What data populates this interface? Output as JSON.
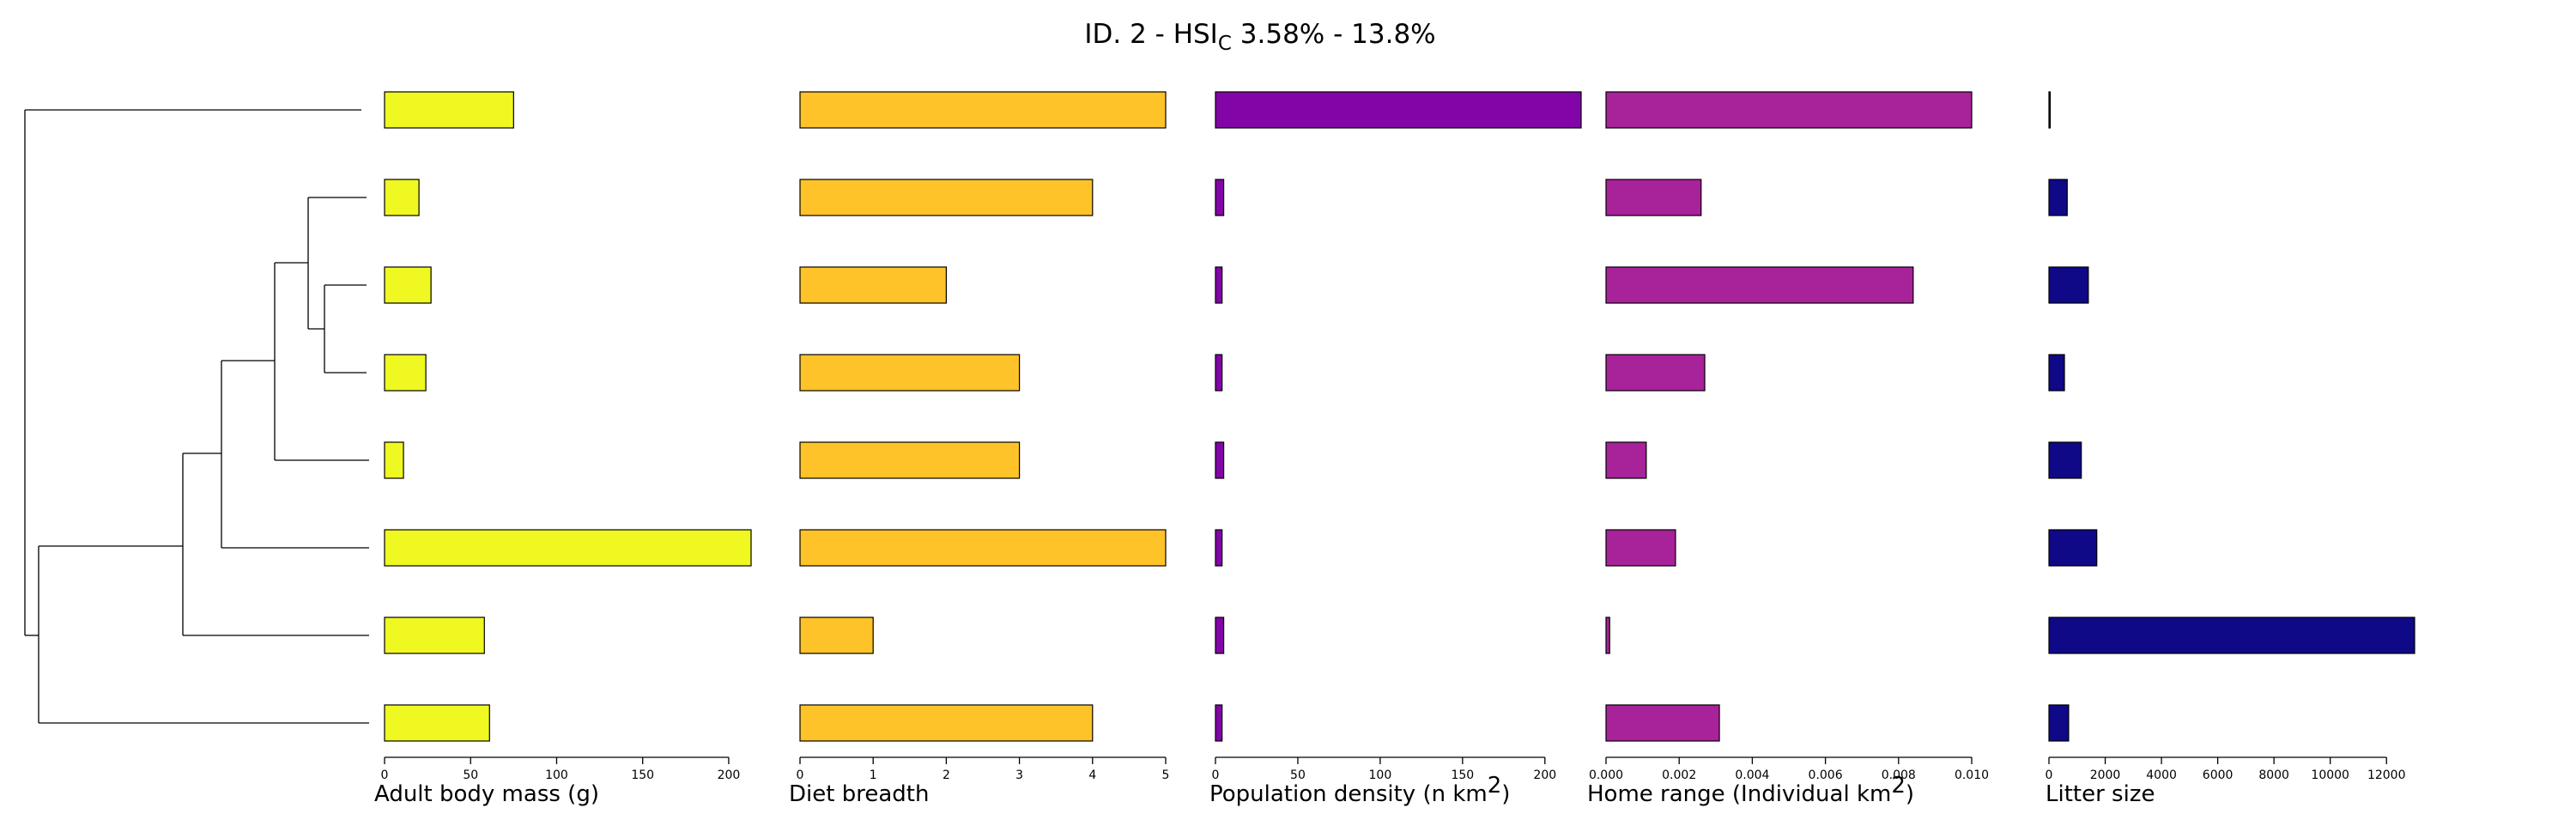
{
  "chart_data": {
    "type": "bar",
    "orientation": "horizontal",
    "title": {
      "main": "ID. 2 - HSI",
      "subscript": "C",
      "range": "3.58% - 13.8%"
    },
    "tree_leaves": 8,
    "panels": [
      {
        "id": "adult_body_mass",
        "xlabel": "Adult body mass (g)",
        "xlabel_sup": "",
        "xlabel_after": "",
        "color": "#EFF821",
        "xlim": [
          0,
          213
        ],
        "ticks": [
          0,
          50,
          100,
          150,
          200
        ],
        "tick_labels": [
          "0",
          "50",
          "100",
          "150",
          "200"
        ],
        "values": [
          75,
          20,
          27,
          24,
          11,
          213,
          58,
          61
        ]
      },
      {
        "id": "diet_breadth",
        "xlabel": "Diet breadth",
        "xlabel_sup": "",
        "xlabel_after": "",
        "color": "#FDC328",
        "xlim": [
          0,
          5
        ],
        "ticks": [
          0,
          1,
          2,
          3,
          4,
          5
        ],
        "tick_labels": [
          "0",
          "1",
          "2",
          "3",
          "4",
          "5"
        ],
        "values": [
          5,
          4,
          2,
          3,
          3,
          5,
          1,
          4
        ]
      },
      {
        "id": "population_density",
        "xlabel": "Population density (n km",
        "xlabel_sup": "2",
        "xlabel_after": ")",
        "color": "#8305A7",
        "xlim": [
          0,
          222
        ],
        "ticks": [
          0,
          50,
          100,
          150,
          200
        ],
        "tick_labels": [
          "0",
          "50",
          "100",
          "150",
          "200"
        ],
        "values": [
          222,
          5,
          4,
          4,
          5,
          4,
          5,
          4
        ]
      },
      {
        "id": "home_range",
        "xlabel": "Home range (Individual km",
        "xlabel_sup": "2",
        "xlabel_after": ")",
        "color": "#A8229A",
        "xlim": [
          0,
          0.01
        ],
        "ticks": [
          0,
          0.002,
          0.004,
          0.006,
          0.008,
          0.01
        ],
        "tick_labels": [
          "0.000",
          "0.002",
          "0.004",
          "0.006",
          "0.008",
          "0.010"
        ],
        "values": [
          0.01,
          0.0026,
          0.0084,
          0.0027,
          0.0011,
          0.0019,
          0.0001,
          0.0031
        ]
      },
      {
        "id": "litter_size",
        "xlabel": "Litter size",
        "xlabel_sup": "",
        "xlabel_after": "",
        "color": "#0F0887",
        "xlim": [
          0,
          13000
        ],
        "ticks": [
          0,
          2000,
          4000,
          6000,
          8000,
          10000,
          12000
        ],
        "tick_labels": [
          "0",
          "2000",
          "4000",
          "6000",
          "8000",
          "10000",
          "12000"
        ],
        "values": [
          40,
          650,
          1400,
          550,
          1150,
          1700,
          13000,
          700
        ]
      }
    ]
  }
}
